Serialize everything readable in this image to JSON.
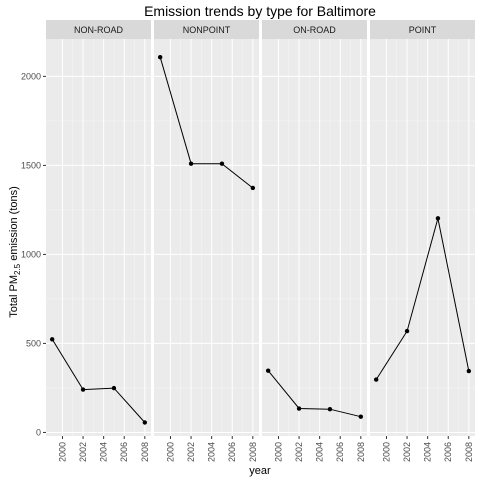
{
  "chart_data": {
    "type": "line",
    "title": "Emission trends by type for Baltimore",
    "xlabel": "year",
    "ylabel_main": "Total PM",
    "ylabel_sub": "2.5",
    "ylabel_tail": " emission (tons)",
    "x_ticks": [
      "2000",
      "2002",
      "2004",
      "2006",
      "2008"
    ],
    "y_ticks": [
      "0",
      "500",
      "1000",
      "1500",
      "2000"
    ],
    "xlim": [
      1998.4,
      2008.6
    ],
    "ylim": [
      -20,
      2210
    ],
    "grid": true,
    "facets": [
      {
        "label": "NON-ROAD",
        "x": [
          1999,
          2002,
          2005,
          2008
        ],
        "y": [
          522.9,
          240.8,
          248.9,
          55.8
        ]
      },
      {
        "label": "NONPOINT",
        "x": [
          1999,
          2002,
          2005,
          2008
        ],
        "y": [
          2107.6,
          1509.5,
          1509.5,
          1373.2
        ]
      },
      {
        "label": "ON-ROAD",
        "x": [
          1999,
          2002,
          2005,
          2008
        ],
        "y": [
          346.8,
          134.3,
          130.4,
          88.3
        ]
      },
      {
        "label": "POINT",
        "x": [
          1999,
          2002,
          2005,
          2008
        ],
        "y": [
          296.8,
          569.3,
          1202.5,
          344.98
        ]
      }
    ]
  },
  "colors": {
    "panel_bg": "#ebebeb",
    "grid_major": "#ffffff",
    "strip_bg": "#d9d9d9",
    "line": "#000000",
    "tick": "#333333"
  }
}
